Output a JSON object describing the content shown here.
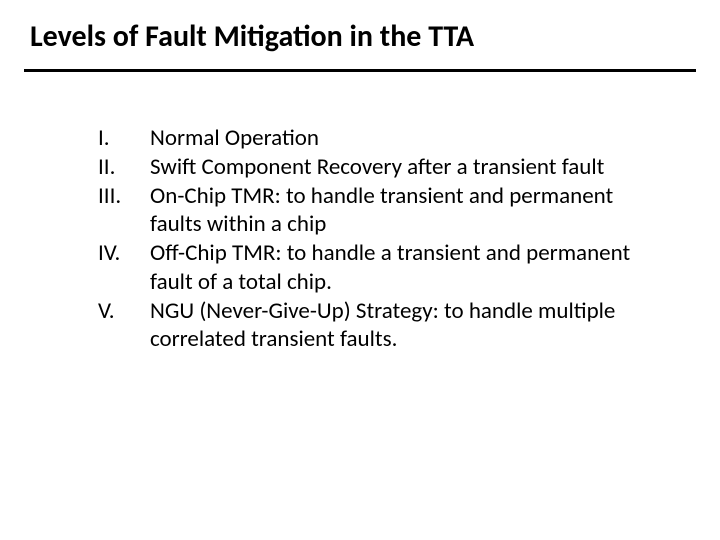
{
  "title": "Levels of Fault Mitigation in the TTA",
  "items": [
    {
      "numeral": "I.",
      "text": "Normal Operation"
    },
    {
      "numeral": "II.",
      "text": "Swift Component Recovery after a transient fault"
    },
    {
      "numeral": "III.",
      "text": " On-Chip  TMR: to handle transient and permanent faults within a chip"
    },
    {
      "numeral": "IV.",
      "text": "Off-Chip TMR: to handle a transient and permanent fault of a total chip."
    },
    {
      "numeral": "V.",
      "text": "NGU (Never-Give-Up) Strategy: to handle multiple correlated transient faults."
    }
  ],
  "colors": {
    "background": "#ffffff",
    "text": "#000000",
    "rule": "#000000"
  },
  "typography": {
    "title_fontsize": 30,
    "title_fontweight": "bold",
    "body_fontsize": 23,
    "font_family": "Calibri"
  }
}
